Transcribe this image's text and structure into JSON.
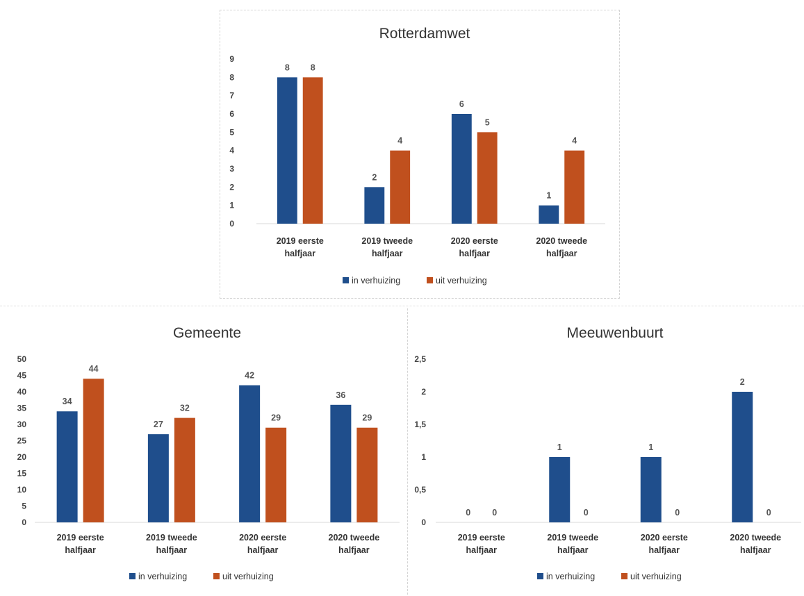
{
  "colors": {
    "in": "#1f4e8c",
    "uit": "#c0501e",
    "axis": "#d9d9d9"
  },
  "legend": [
    "in verhuizing",
    "uit verhuizing"
  ],
  "chart_data": [
    {
      "type": "bar",
      "title": "Rotterdamwet",
      "categories": [
        [
          "2019 eerste",
          "halfjaar"
        ],
        [
          "2019 tweede",
          "halfjaar"
        ],
        [
          "2020 eerste",
          "halfjaar"
        ],
        [
          "2020 tweede",
          "halfjaar"
        ]
      ],
      "series": [
        {
          "name": "in verhuizing",
          "values": [
            8,
            2,
            6,
            1
          ]
        },
        {
          "name": "uit verhuizing",
          "values": [
            8,
            4,
            5,
            4
          ]
        }
      ],
      "ylim": [
        0,
        9
      ],
      "yticks": [
        "0",
        "1",
        "2",
        "3",
        "4",
        "5",
        "6",
        "7",
        "8",
        "9"
      ],
      "ytick_values": [
        0,
        1,
        2,
        3,
        4,
        5,
        6,
        7,
        8,
        9
      ],
      "legend_position": "bottom"
    },
    {
      "type": "bar",
      "title": "Gemeente",
      "categories": [
        [
          "2019 eerste",
          "halfjaar"
        ],
        [
          "2019 tweede",
          "halfjaar"
        ],
        [
          "2020 eerste",
          "halfjaar"
        ],
        [
          "2020 tweede",
          "halfjaar"
        ]
      ],
      "series": [
        {
          "name": "in verhuizing",
          "values": [
            34,
            27,
            42,
            36
          ]
        },
        {
          "name": "uit verhuizing",
          "values": [
            44,
            32,
            29,
            29
          ]
        }
      ],
      "ylim": [
        0,
        50
      ],
      "yticks": [
        "0",
        "5",
        "10",
        "15",
        "20",
        "25",
        "30",
        "35",
        "40",
        "45",
        "50"
      ],
      "ytick_values": [
        0,
        5,
        10,
        15,
        20,
        25,
        30,
        35,
        40,
        45,
        50
      ],
      "legend_position": "bottom"
    },
    {
      "type": "bar",
      "title": "Meeuwenbuurt",
      "categories": [
        [
          "2019 eerste",
          "halfjaar"
        ],
        [
          "2019 tweede",
          "halfjaar"
        ],
        [
          "2020 eerste",
          "halfjaar"
        ],
        [
          "2020 tweede",
          "halfjaar"
        ]
      ],
      "series": [
        {
          "name": "in verhuizing",
          "values": [
            0,
            1,
            1,
            2
          ]
        },
        {
          "name": "uit verhuizing",
          "values": [
            0,
            0,
            0,
            0
          ]
        }
      ],
      "ylim": [
        0,
        2.5
      ],
      "yticks": [
        "0",
        "0,5",
        "1",
        "1,5",
        "2",
        "2,5"
      ],
      "ytick_values": [
        0,
        0.5,
        1,
        1.5,
        2,
        2.5
      ],
      "legend_position": "bottom"
    }
  ]
}
